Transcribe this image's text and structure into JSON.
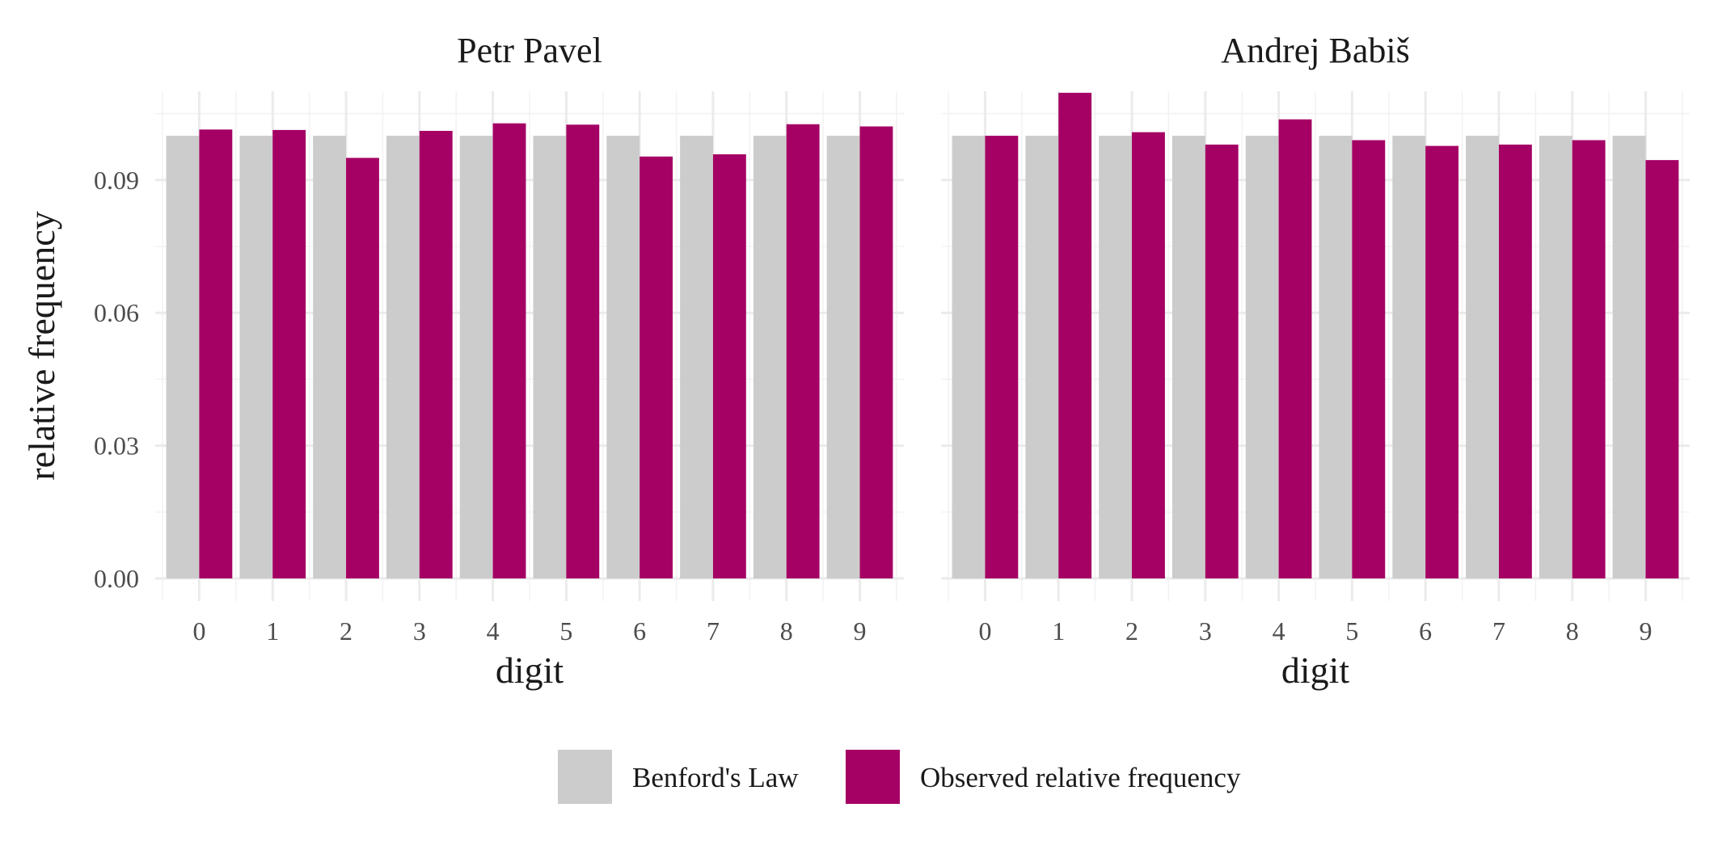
{
  "chart_data": [
    {
      "type": "bar",
      "title": "Petr Pavel",
      "xlabel": "digit",
      "ylabel": "relative frequency",
      "categories": [
        "0",
        "1",
        "2",
        "3",
        "4",
        "5",
        "6",
        "7",
        "8",
        "9"
      ],
      "series": [
        {
          "name": "Benford's Law",
          "values": [
            0.1,
            0.1,
            0.1,
            0.1,
            0.1,
            0.1,
            0.1,
            0.1,
            0.1,
            0.1
          ]
        },
        {
          "name": "Observed relative frequency",
          "values": [
            0.1014,
            0.1013,
            0.095,
            0.1011,
            0.1028,
            0.1025,
            0.0953,
            0.0958,
            0.1026,
            0.1021
          ]
        }
      ],
      "ylim": [
        0,
        0.116
      ],
      "yticks": [
        "0.00",
        "0.03",
        "0.06",
        "0.09"
      ]
    },
    {
      "type": "bar",
      "title": "Andrej Babiš",
      "xlabel": "digit",
      "ylabel": "relative frequency",
      "categories": [
        "0",
        "1",
        "2",
        "3",
        "4",
        "5",
        "6",
        "7",
        "8",
        "9"
      ],
      "series": [
        {
          "name": "Benford's Law",
          "values": [
            0.1,
            0.1,
            0.1,
            0.1,
            0.1,
            0.1,
            0.1,
            0.1,
            0.1,
            0.1
          ]
        },
        {
          "name": "Observed relative frequency",
          "values": [
            0.1,
            0.1097,
            0.1008,
            0.098,
            0.1037,
            0.099,
            0.0977,
            0.098,
            0.099,
            0.0945
          ]
        }
      ],
      "ylim": [
        0,
        0.116
      ],
      "yticks": [
        "0.00",
        "0.03",
        "0.06",
        "0.09"
      ]
    }
  ],
  "legend": {
    "position": "bottom",
    "items": [
      {
        "label": "Benford's Law",
        "color": "#cccccc"
      },
      {
        "label": "Observed relative frequency",
        "color": "#a50064"
      }
    ]
  },
  "colors": {
    "benford": "#cccccc",
    "observed": "#a50064",
    "grid_major": "#ebebeb",
    "grid_minor": "#f3f3f3"
  }
}
